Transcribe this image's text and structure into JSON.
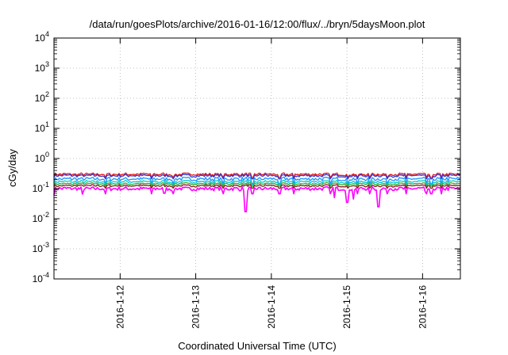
{
  "chart_data": {
    "type": "line",
    "title": "/data/run/goesPlots/archive/2016-01-16/12:00/flux/../bryn/5daysMoon.plot",
    "xlabel": "Coordinated Universal Time (UTC)",
    "ylabel": "cGy/day",
    "yscale": "log",
    "ylim": [
      0.0001,
      10000
    ],
    "xlim": [
      "2016-01-11 03:00",
      "2016-01-16 12:00"
    ],
    "grid": true,
    "legend": "none",
    "x_ticks": [
      "2016-1-12",
      "2016-1-13",
      "2016-1-14",
      "2016-1-15",
      "2016-1-16"
    ],
    "y_ticks": [
      {
        "base": "10",
        "exp": "-4",
        "value": 0.0001
      },
      {
        "base": "10",
        "exp": "-3",
        "value": 0.001
      },
      {
        "base": "10",
        "exp": "-2",
        "value": 0.01
      },
      {
        "base": "10",
        "exp": "-1",
        "value": 0.1
      },
      {
        "base": "10",
        "exp": "0",
        "value": 1
      },
      {
        "base": "10",
        "exp": "1",
        "value": 10
      },
      {
        "base": "10",
        "exp": "2",
        "value": 100
      },
      {
        "base": "10",
        "exp": "3",
        "value": 1000
      },
      {
        "base": "10",
        "exp": "4",
        "value": 10000
      }
    ],
    "series": [
      {
        "color": "#e41a1c",
        "level": 0.3,
        "amplitude": 0.1
      },
      {
        "color": "#3333cc",
        "level": 0.27,
        "amplitude": 0.1
      },
      {
        "color": "#1e90ff",
        "level": 0.21,
        "amplitude": 0.14
      },
      {
        "color": "#00cccc",
        "level": 0.17,
        "amplitude": 0.1
      },
      {
        "color": "#33aa33",
        "level": 0.145,
        "amplitude": 0.08
      },
      {
        "color": "#8b1a1a",
        "level": 0.125,
        "amplitude": 0.08
      },
      {
        "color": "#ff00ff",
        "level": 0.1,
        "amplitude": 0.15,
        "dips": [
          {
            "x": "2016-01-11 03:00",
            "y": 0.06
          },
          {
            "x": "2016-01-11 12:00",
            "y": 0.065
          },
          {
            "x": "2016-01-12 14:00",
            "y": 0.07
          },
          {
            "x": "2016-01-13 16:00",
            "y": 0.017
          },
          {
            "x": "2016-01-14 20:00",
            "y": 0.05
          },
          {
            "x": "2016-01-15 00:00",
            "y": 0.035
          },
          {
            "x": "2016-01-15 02:00",
            "y": 0.045
          },
          {
            "x": "2016-01-15 10:00",
            "y": 0.025
          },
          {
            "x": "2016-01-16 01:00",
            "y": 0.08
          }
        ]
      }
    ]
  }
}
